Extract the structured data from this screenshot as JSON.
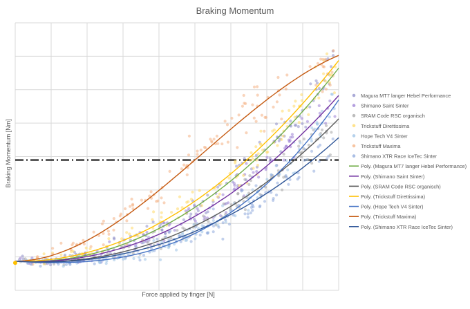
{
  "chart_data": {
    "type": "scatter",
    "title": "Braking Momentum",
    "xlabel": "Force applied by finger [N]",
    "ylabel": "Braking Momentum [Nm]",
    "xlim": [
      0,
      100
    ],
    "ylim": [
      -8,
      70
    ],
    "grid": true,
    "tick_labels_visible": false,
    "legend_position": "right",
    "reference_line": {
      "style": "dash-dot",
      "y": 30,
      "color": "#000000"
    },
    "series": [
      {
        "name": "Magura MT7 langer Hebel Performance",
        "kind": "points",
        "color": "#8E8EC9",
        "trend": [
          0.5,
          -0.05,
          0.0058,
          3.3e-06
        ],
        "noise": 3.0,
        "spread": 0.08
      },
      {
        "name": "Shimano Saint Sinter",
        "kind": "points",
        "color": "#9B7FD4",
        "trend": [
          0.5,
          -0.05,
          0.0049,
          4.3e-06
        ],
        "noise": 3.0,
        "spread": 0.08
      },
      {
        "name": "SRAM Code RSC organisch",
        "kind": "points",
        "color": "#A5A5A5",
        "trend": [
          0.5,
          -0.06,
          0.004,
          7.5e-06
        ],
        "noise": 3.0,
        "spread": 0.08
      },
      {
        "name": "Trickstuff Direttissima",
        "kind": "points",
        "color": "#FFD966",
        "trend": [
          0.5,
          -0.02,
          0.006,
          5e-07
        ],
        "noise": 3.0,
        "spread": 0.08
      },
      {
        "name": "Hope Tech V4 Sinter",
        "kind": "points",
        "color": "#9DC3E6",
        "trend": [
          0.5,
          -0.06,
          0.0017,
          3.6e-05
        ],
        "noise": 2.5,
        "spread": 0.08
      },
      {
        "name": "Trickstuff Maxima",
        "kind": "points",
        "color": "#F4B183",
        "trend": [
          0.5,
          0.0,
          0.014,
          -8e-05
        ],
        "noise": 4.0,
        "spread": 0.08
      },
      {
        "name": "Shimano XTR Race IceTec Sinter",
        "kind": "points",
        "color": "#8FAADC",
        "trend": [
          0.5,
          -0.06,
          0.0035,
          7e-06
        ],
        "noise": 3.0,
        "spread": 0.08
      },
      {
        "name": "Poly. (Magura MT7 langer Hebel Performance)",
        "kind": "trend",
        "color": "#70AD47",
        "coeffs": [
          0.5,
          -0.05,
          0.0058,
          3.3e-06
        ]
      },
      {
        "name": "Poly. (Shimano Saint Sinter)",
        "kind": "trend",
        "color": "#7030A0",
        "coeffs": [
          0.5,
          -0.05,
          0.0049,
          4.3e-06
        ]
      },
      {
        "name": "Poly. (SRAM Code RSC organisch)",
        "kind": "trend",
        "color": "#595959",
        "coeffs": [
          0.5,
          -0.06,
          0.004,
          7.5e-06
        ]
      },
      {
        "name": "Poly. (Trickstuff Direttissima)",
        "kind": "trend",
        "color": "#FFC000",
        "coeffs": [
          0.5,
          -0.02,
          0.006,
          5e-07
        ]
      },
      {
        "name": "Poly. (Hope Tech V4 Sinter)",
        "kind": "trend",
        "color": "#4472C4",
        "coeffs": [
          0.5,
          -0.06,
          0.0017,
          3.6e-05
        ]
      },
      {
        "name": "Poly. (Trickstuff Maxima)",
        "kind": "trend",
        "color": "#C55A11",
        "coeffs": [
          0.5,
          0.0,
          0.014,
          -8e-05
        ]
      },
      {
        "name": "Poly. (Shimano XTR Race IceTec Sinter)",
        "kind": "trend",
        "color": "#2E5597",
        "coeffs": [
          0.5,
          -0.06,
          0.0035,
          7e-06
        ]
      }
    ],
    "origin_marker": {
      "x": 0,
      "y": 0,
      "color": "#FFC000"
    }
  }
}
